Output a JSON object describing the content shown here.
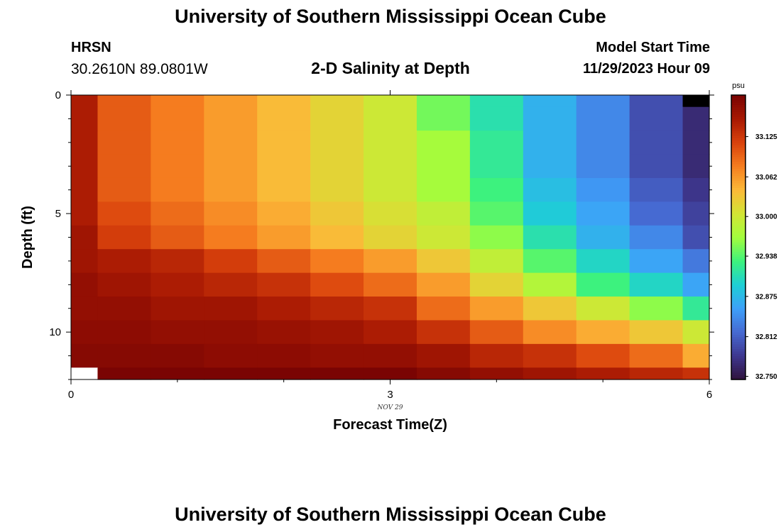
{
  "header": {
    "title": "University of Southern Mississippi Ocean Cube",
    "station_id": "HRSN",
    "station_coords": "30.2610N  89.0801W",
    "subtitle": "2-D Salinity at Depth",
    "model_start_label": "Model Start Time",
    "model_start_value": "11/29/2023 Hour 09"
  },
  "footer": {
    "title": "University of Southern Mississippi Ocean Cube"
  },
  "chart_data": {
    "type": "heatmap",
    "xlabel": "Forecast Time(Z)",
    "ylabel": "Depth (ft)",
    "x_date_label": "NOV 29",
    "xlim": [
      0,
      6
    ],
    "ylim": [
      12,
      0
    ],
    "x_ticks": [
      0,
      3,
      6
    ],
    "x_tick_labels": [
      "0",
      "3",
      "6"
    ],
    "y_ticks": [
      0,
      5,
      10
    ],
    "y_tick_labels": [
      "0",
      "5",
      "10"
    ],
    "x_edges": [
      0,
      0.25,
      0.75,
      1.25,
      1.75,
      2.25,
      2.75,
      3.25,
      3.75,
      4.25,
      4.75,
      5.25,
      5.75,
      6
    ],
    "y_edges": [
      0,
      0.5,
      1.5,
      2.5,
      3.5,
      4.5,
      5.5,
      6.5,
      7.5,
      8.5,
      9.5,
      10.5,
      11.5,
      12
    ],
    "colorbar": {
      "unit": "psu",
      "ticks": [
        32.75,
        32.812,
        32.875,
        32.938,
        33.0,
        33.062,
        33.125
      ],
      "tick_labels": [
        "32.750",
        "32.812",
        "32.875",
        "32.938",
        "33.000",
        "33.062",
        "33.125"
      ],
      "range": [
        32.745,
        33.19
      ],
      "colormap": [
        "#30123b",
        "#3e378f",
        "#4669d1",
        "#3ea0fa",
        "#1dcfd5",
        "#3df27d",
        "#a3fd3d",
        "#d2e535",
        "#fbb938",
        "#f67e20",
        "#d9420c",
        "#a81903",
        "#7a0403"
      ],
      "out_of_range_low": "#000000"
    },
    "values": [
      [
        33.15,
        33.1,
        33.08,
        33.06,
        33.04,
        33.02,
        33.0,
        32.95,
        32.91,
        32.87,
        32.84,
        32.8,
        32.7
      ],
      [
        33.15,
        33.1,
        33.08,
        33.06,
        33.04,
        33.02,
        33.0,
        32.95,
        32.91,
        32.87,
        32.84,
        32.8,
        32.77
      ],
      [
        33.15,
        33.1,
        33.08,
        33.06,
        33.04,
        33.02,
        33.0,
        32.97,
        32.92,
        32.87,
        32.84,
        32.8,
        32.77
      ],
      [
        33.15,
        33.1,
        33.08,
        33.06,
        33.04,
        33.02,
        33.0,
        32.97,
        32.92,
        32.87,
        32.84,
        32.8,
        32.77
      ],
      [
        33.15,
        33.1,
        33.08,
        33.06,
        33.04,
        33.02,
        33.0,
        32.97,
        32.93,
        32.88,
        32.85,
        32.81,
        32.78
      ],
      [
        33.15,
        33.11,
        33.09,
        33.07,
        33.05,
        33.03,
        33.01,
        32.99,
        32.94,
        32.89,
        32.86,
        32.82,
        32.79
      ],
      [
        33.16,
        33.12,
        33.1,
        33.08,
        33.06,
        33.04,
        33.02,
        33.0,
        32.96,
        32.91,
        32.87,
        32.84,
        32.8
      ],
      [
        33.16,
        33.15,
        33.14,
        33.12,
        33.1,
        33.08,
        33.06,
        33.03,
        32.99,
        32.94,
        32.9,
        32.86,
        32.83
      ],
      [
        33.17,
        33.16,
        33.15,
        33.14,
        33.13,
        33.11,
        33.09,
        33.06,
        33.02,
        32.98,
        32.93,
        32.9,
        32.86
      ],
      [
        33.17,
        33.17,
        33.16,
        33.16,
        33.15,
        33.14,
        33.13,
        33.09,
        33.06,
        33.03,
        33.0,
        32.96,
        32.92
      ],
      [
        33.175,
        33.175,
        33.17,
        33.17,
        33.165,
        33.16,
        33.15,
        33.13,
        33.1,
        33.07,
        33.05,
        33.03,
        33.0
      ],
      [
        33.18,
        33.18,
        33.18,
        33.175,
        33.175,
        33.17,
        33.17,
        33.16,
        33.14,
        33.13,
        33.11,
        33.09,
        33.05
      ],
      [
        null,
        33.19,
        33.19,
        33.19,
        33.19,
        33.19,
        33.19,
        33.18,
        33.17,
        33.16,
        33.15,
        33.14,
        33.13
      ]
    ]
  }
}
